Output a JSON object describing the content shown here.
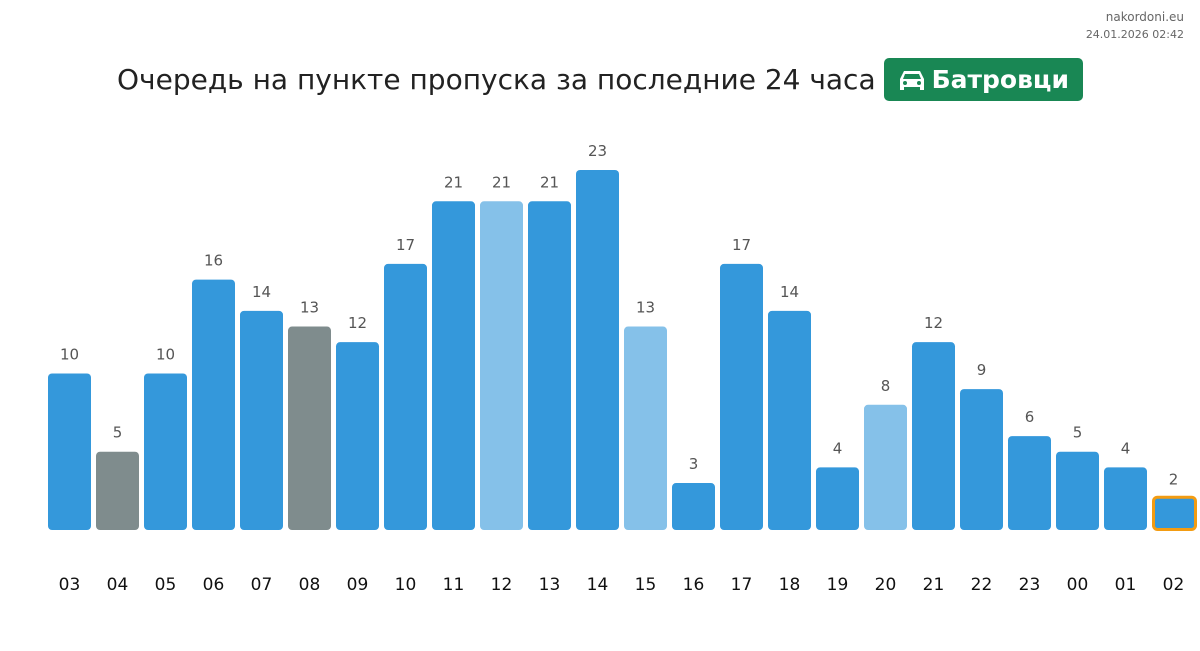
{
  "site": {
    "name": "nakordoni.eu",
    "timestamp": "24.01.2026 02:42"
  },
  "header": {
    "title": "Очередь на пункте пропуска за последние 24 часа",
    "checkpoint": "Батровци",
    "checkpoint_icon": "car-icon",
    "badge_color": "#198754"
  },
  "chart_data": {
    "type": "bar",
    "title": "Очередь на пункте пропуска за последние 24 часа",
    "xlabel": "",
    "ylabel": "",
    "ylim": [
      0,
      23
    ],
    "grid": false,
    "categories": [
      "03",
      "04",
      "05",
      "06",
      "07",
      "08",
      "09",
      "10",
      "11",
      "12",
      "13",
      "14",
      "15",
      "16",
      "17",
      "18",
      "19",
      "20",
      "21",
      "22",
      "23",
      "00",
      "01",
      "02"
    ],
    "values": [
      10,
      5,
      10,
      16,
      14,
      13,
      12,
      17,
      21,
      21,
      21,
      23,
      13,
      3,
      17,
      14,
      4,
      8,
      12,
      9,
      6,
      5,
      4,
      2
    ],
    "bar_status": [
      "normal",
      "missing",
      "normal",
      "normal",
      "normal",
      "missing",
      "normal",
      "normal",
      "normal",
      "estimated",
      "normal",
      "normal",
      "estimated",
      "normal",
      "normal",
      "normal",
      "normal",
      "estimated",
      "normal",
      "normal",
      "normal",
      "normal",
      "normal",
      "current"
    ],
    "colors": {
      "normal": "#3498db",
      "estimated": "#85c1e9",
      "missing": "#7f8c8d",
      "current_outline": "#f39c12"
    }
  }
}
